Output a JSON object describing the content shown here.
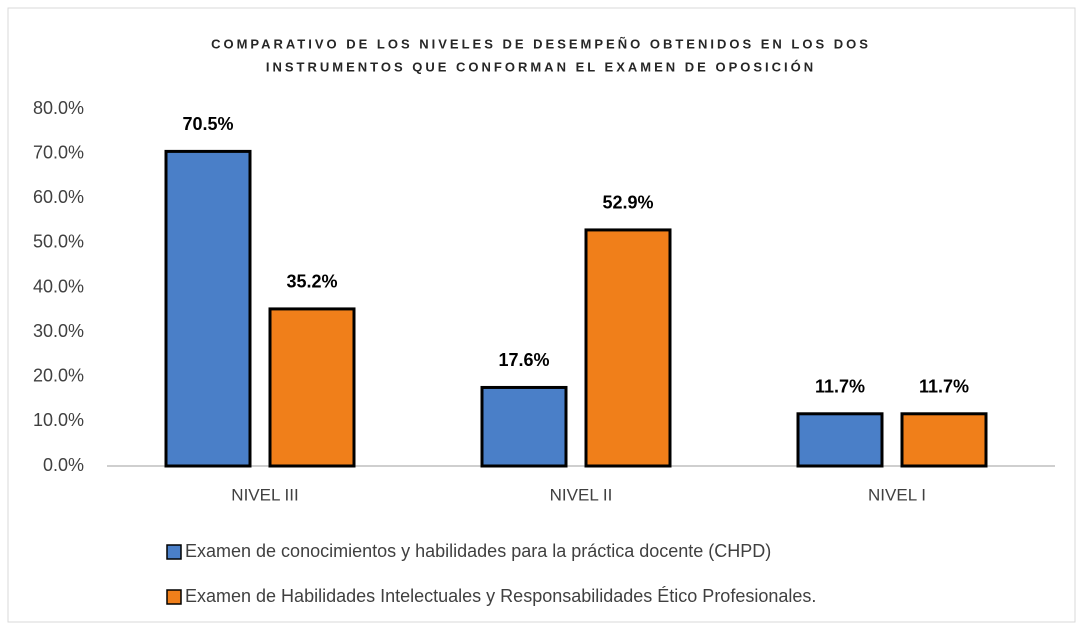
{
  "chart_data": {
    "type": "bar",
    "title": [
      "COMPARATIVO DE LOS NIVELES DE DESEMPEÑO OBTENIDOS EN LOS DOS",
      "INSTRUMENTOS QUE CONFORMAN EL EXAMEN DE OPOSICIÓN"
    ],
    "categories": [
      "NIVEL III",
      "NIVEL II",
      "NIVEL I"
    ],
    "series": [
      {
        "name": "Examen de conocimientos y habilidades para la práctica docente (CHPD)",
        "color": "#4a7fc8",
        "values": [
          70.5,
          17.6,
          11.7
        ],
        "value_labels": [
          "70.5%",
          "17.6%",
          "11.7%"
        ]
      },
      {
        "name": "Examen de Habilidades Intelectuales y Responsabilidades Ético Profesionales.",
        "color": "#f07f1a",
        "values": [
          35.2,
          52.9,
          11.7
        ],
        "value_labels": [
          "35.2%",
          "52.9%",
          "11.7%"
        ]
      }
    ],
    "ylim": [
      0,
      80
    ],
    "yticks": [
      {
        "value": 0,
        "label": "0.0%"
      },
      {
        "value": 10,
        "label": "10.0%"
      },
      {
        "value": 20,
        "label": "20.0%"
      },
      {
        "value": 30,
        "label": "30.0%"
      },
      {
        "value": 40,
        "label": "40.0%"
      },
      {
        "value": 50,
        "label": "50.0%"
      },
      {
        "value": 60,
        "label": "60.0%"
      },
      {
        "value": 70,
        "label": "70.0%"
      },
      {
        "value": 80,
        "label": "80.0%"
      }
    ],
    "grid": false,
    "legend": "bottom"
  }
}
